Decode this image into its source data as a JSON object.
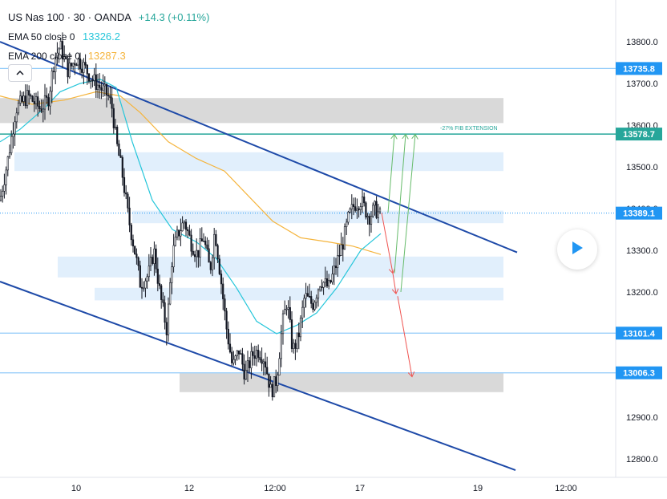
{
  "header": {
    "symbol": "US Nas 100 · 30 · OANDA",
    "change": "+14.3 (+0.11%)",
    "indicators": [
      {
        "label": "EMA 50 close 0",
        "value": "13326.2",
        "color": "#26c6da"
      },
      {
        "label": "EMA 200 close 0",
        "value": "13287.3",
        "color": "#f5b43c"
      }
    ]
  },
  "collapse_icon": "chevron-up-icon",
  "play_icon": "play-icon",
  "chart_data": {
    "type": "candlestick",
    "ylim": [
      12750,
      13850
    ],
    "y_ticks": [
      12800,
      12900,
      13000,
      13100,
      13200,
      13300,
      13400,
      13500,
      13600,
      13700,
      13800
    ],
    "y_tick_labels": [
      "12800.0",
      "12900.0",
      "13000.0",
      "13100.0",
      "13200.0",
      "13300.0",
      "13400.0",
      "13500.0",
      "13600.0",
      "13700.0",
      "13800.0"
    ],
    "x_tick_labels": [
      "10",
      "12",
      "12:00",
      "17",
      "19",
      "12:00"
    ],
    "price_labels": [
      {
        "value": 13735.8,
        "text": "13735.8",
        "color": "#2196f3",
        "style": "solid"
      },
      {
        "value": 13578.7,
        "text": "13578.7",
        "color": "#26a69a",
        "style": "solid"
      },
      {
        "value": 13389.1,
        "text": "13389.1",
        "color": "#2196f3",
        "style": "dotted"
      },
      {
        "value": 13101.4,
        "text": "13101.4",
        "color": "#2196f3",
        "style": "solid"
      },
      {
        "value": 13006.3,
        "text": "13006.3",
        "color": "#2196f3",
        "style": "solid"
      }
    ],
    "annotation": "-27% FIB EXTENSION",
    "zones": [
      {
        "y1": 13605,
        "y2": 13665,
        "color": "#d9d9d9"
      },
      {
        "y1": 13490,
        "y2": 13535,
        "color": "#e1effc"
      },
      {
        "y1": 13365,
        "y2": 13395,
        "color": "#e1effc"
      },
      {
        "y1": 13235,
        "y2": 13285,
        "color": "#e1effc"
      },
      {
        "y1": 13180,
        "y2": 13210,
        "color": "#e1effc"
      },
      {
        "y1": 12960,
        "y2": 13005,
        "color": "#d9d9d9"
      }
    ],
    "channel_lines": [
      {
        "p1": [
          0,
          13800
        ],
        "p2": [
          645,
          13295
        ]
      },
      {
        "p1": [
          0,
          13225
        ],
        "p2": [
          643,
          12773
        ]
      }
    ],
    "price_path": [
      [
        0,
        13420
      ],
      [
        10,
        13520
      ],
      [
        20,
        13640
      ],
      [
        35,
        13670
      ],
      [
        50,
        13640
      ],
      [
        60,
        13660
      ],
      [
        68,
        13760
      ],
      [
        75,
        13790
      ],
      [
        85,
        13730
      ],
      [
        95,
        13760
      ],
      [
        105,
        13740
      ],
      [
        115,
        13710
      ],
      [
        125,
        13690
      ],
      [
        135,
        13670
      ],
      [
        140,
        13640
      ],
      [
        145,
        13560
      ],
      [
        152,
        13490
      ],
      [
        160,
        13380
      ],
      [
        168,
        13300
      ],
      [
        175,
        13220
      ],
      [
        185,
        13240
      ],
      [
        192,
        13300
      ],
      [
        200,
        13190
      ],
      [
        208,
        13110
      ],
      [
        215,
        13290
      ],
      [
        222,
        13340
      ],
      [
        230,
        13370
      ],
      [
        238,
        13320
      ],
      [
        246,
        13290
      ],
      [
        254,
        13330
      ],
      [
        262,
        13250
      ],
      [
        268,
        13350
      ],
      [
        275,
        13240
      ],
      [
        282,
        13120
      ],
      [
        290,
        13020
      ],
      [
        298,
        13060
      ],
      [
        306,
        13000
      ],
      [
        315,
        13050
      ],
      [
        322,
        13060
      ],
      [
        330,
        13040
      ],
      [
        338,
        12960
      ],
      [
        345,
        12990
      ],
      [
        352,
        13120
      ],
      [
        358,
        13180
      ],
      [
        365,
        13060
      ],
      [
        372,
        13090
      ],
      [
        380,
        13190
      ],
      [
        390,
        13170
      ],
      [
        400,
        13230
      ],
      [
        410,
        13210
      ],
      [
        420,
        13270
      ],
      [
        428,
        13320
      ],
      [
        435,
        13380
      ],
      [
        442,
        13410
      ],
      [
        450,
        13420
      ],
      [
        460,
        13380
      ],
      [
        468,
        13400
      ],
      [
        475,
        13380
      ]
    ],
    "ema50_path": [
      [
        0,
        13560
      ],
      [
        25,
        13590
      ],
      [
        55,
        13640
      ],
      [
        75,
        13680
      ],
      [
        100,
        13700
      ],
      [
        125,
        13710
      ],
      [
        145,
        13690
      ],
      [
        165,
        13560
      ],
      [
        190,
        13420
      ],
      [
        215,
        13350
      ],
      [
        245,
        13320
      ],
      [
        270,
        13280
      ],
      [
        295,
        13210
      ],
      [
        320,
        13130
      ],
      [
        345,
        13100
      ],
      [
        370,
        13120
      ],
      [
        395,
        13150
      ],
      [
        420,
        13210
      ],
      [
        450,
        13300
      ],
      [
        475,
        13340
      ]
    ],
    "ema200_path": [
      [
        0,
        13670
      ],
      [
        40,
        13650
      ],
      [
        80,
        13660
      ],
      [
        120,
        13680
      ],
      [
        150,
        13670
      ],
      [
        175,
        13630
      ],
      [
        210,
        13560
      ],
      [
        245,
        13520
      ],
      [
        280,
        13490
      ],
      [
        310,
        13430
      ],
      [
        340,
        13370
      ],
      [
        375,
        13330
      ],
      [
        410,
        13320
      ],
      [
        440,
        13310
      ],
      [
        475,
        13290
      ]
    ],
    "projection_arrows": [
      {
        "from": [
          476,
          13390
        ],
        "to": [
          490,
          13245
        ],
        "color": "#ef5350"
      },
      {
        "from": [
          490,
          13245
        ],
        "to": [
          494,
          13196
        ],
        "color": "#ef5350"
      },
      {
        "from": [
          496,
          13190
        ],
        "to": [
          514,
          12997
        ],
        "color": "#ef5350"
      },
      {
        "from": [
          484,
          13390
        ],
        "to": [
          492,
          13578
        ],
        "color": "#66bb6a"
      },
      {
        "from": [
          492,
          13245
        ],
        "to": [
          506,
          13578
        ],
        "color": "#66bb6a"
      },
      {
        "from": [
          500,
          13200
        ],
        "to": [
          518,
          13578
        ],
        "color": "#66bb6a"
      }
    ]
  }
}
